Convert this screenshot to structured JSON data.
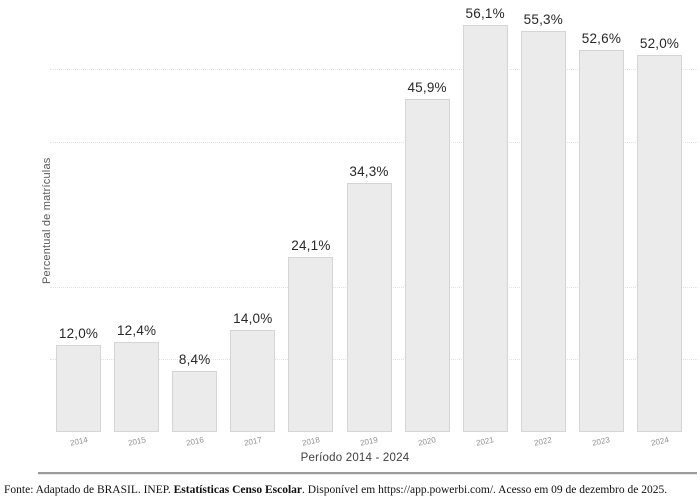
{
  "chart_data": {
    "type": "bar",
    "title": "",
    "categories": [
      "2014",
      "2015",
      "2016",
      "2017",
      "2018",
      "2019",
      "2020",
      "2021",
      "2022",
      "2023",
      "2024"
    ],
    "values": [
      12.0,
      12.4,
      8.4,
      14.0,
      24.1,
      34.3,
      45.9,
      56.1,
      55.3,
      52.6,
      52.0
    ],
    "value_labels": [
      "12,0%",
      "12,4%",
      "8,4%",
      "14,0%",
      "24,1%",
      "34,3%",
      "45,9%",
      "56,1%",
      "55,3%",
      "52,6%",
      "52,0%"
    ],
    "xlabel": "Período 2014 - 2024",
    "ylabel": "Percentual de matrículas",
    "ylim": [
      0,
      60
    ],
    "gridline_values": [
      10,
      20,
      40,
      50
    ],
    "grid": "dotted-horizontal",
    "legend": "none",
    "bar_color": "#ebebeb",
    "bar_border_color": "#d5d5d5",
    "value_label_color": "#282828",
    "tick_label_color": "#909090",
    "gridline_color": "#e2e2e2"
  },
  "footer": {
    "prefix": "Fonte: Adaptado de BRASIL. INEP. ",
    "bold": "Estatísticas Censo Escolar",
    "suffix": ". Disponível em https://app.powerbi.com/. Acesso em 09 de dezembro de 2025."
  }
}
